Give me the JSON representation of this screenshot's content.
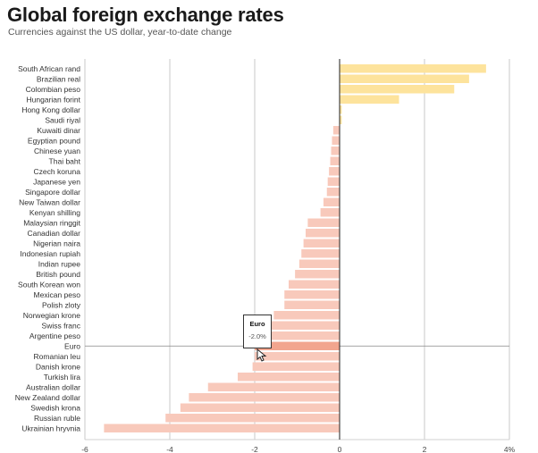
{
  "title": "Global foreign exchange rates",
  "subtitle": "Currencies against the US dollar, year-to-date change",
  "chart_data": {
    "type": "bar",
    "orientation": "horizontal",
    "categories": [
      "South African rand",
      "Brazilian real",
      "Colombian peso",
      "Hungarian forint",
      "Hong Kong dollar",
      "Saudi riyal",
      "Kuwaiti dinar",
      "Egyptian pound",
      "Chinese yuan",
      "Thai baht",
      "Czech koruna",
      "Japanese yen",
      "Singapore dollar",
      "New Taiwan dollar",
      "Kenyan shilling",
      "Malaysian ringgit",
      "Canadian dollar",
      "Nigerian naira",
      "Indonesian rupiah",
      "Indian rupee",
      "British pound",
      "South Korean won",
      "Mexican peso",
      "Polish zloty",
      "Norwegian krone",
      "Swiss franc",
      "Argentine peso",
      "Euro",
      "Romanian leu",
      "Danish krone",
      "Turkish lira",
      "Australian dollar",
      "New Zealand dollar",
      "Swedish krona",
      "Russian ruble",
      "Ukrainian hryvnia"
    ],
    "values": [
      3.45,
      3.05,
      2.7,
      1.4,
      0.05,
      0.05,
      -0.15,
      -0.18,
      -0.2,
      -0.22,
      -0.25,
      -0.28,
      -0.3,
      -0.38,
      -0.45,
      -0.75,
      -0.8,
      -0.85,
      -0.9,
      -0.95,
      -1.05,
      -1.2,
      -1.3,
      -1.3,
      -1.55,
      -1.65,
      -1.75,
      -2.0,
      -2.0,
      -2.05,
      -2.4,
      -3.1,
      -3.55,
      -3.75,
      -4.1,
      -5.55
    ],
    "xlim": [
      -6,
      4
    ],
    "xticks": [
      "-6",
      "-4",
      "-2",
      "0",
      "2",
      "4%"
    ],
    "tickvalues": [
      -6,
      -4,
      -2,
      0,
      2,
      4
    ],
    "highlight": "Euro",
    "colors": {
      "positive": "#fde39c",
      "negative": "#f8c9bb",
      "highlight": "#f2a58e"
    }
  },
  "tooltip": {
    "name": "Euro",
    "value": "-2.0%"
  }
}
